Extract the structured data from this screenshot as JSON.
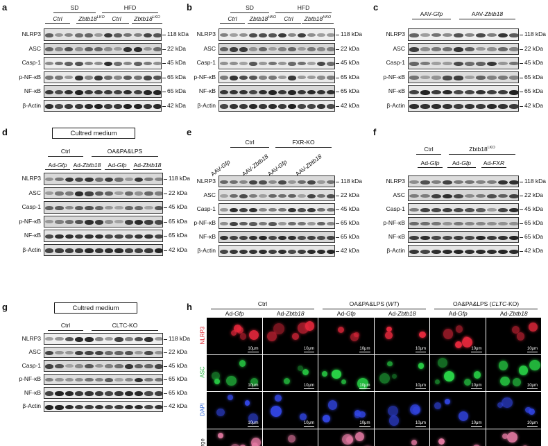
{
  "panels": {
    "a": {
      "letter": "a",
      "groups": [
        {
          "label": "SD"
        },
        {
          "label": "HFD"
        }
      ],
      "subgroups": [
        {
          "label": "Ctrl"
        },
        {
          "label": "Zbtb18",
          "sup": "LKO"
        },
        {
          "label": "Ctrl"
        },
        {
          "label": "Zbtb18",
          "sup": "LKO"
        }
      ],
      "rows": [
        {
          "label": "NLRP3",
          "kda": "118 kDa"
        },
        {
          "label": "ASC",
          "kda": "22 kDa"
        },
        {
          "label": "Casp-1",
          "kda": "45 kDa"
        },
        {
          "label": "p-NF-κB",
          "kda": "65 kDa"
        },
        {
          "label": "NF-κB",
          "kda": "65 kDa"
        },
        {
          "label": "β-Actin",
          "kda": "42 kDa"
        }
      ]
    },
    "b": {
      "letter": "b",
      "groups": [
        {
          "label": "SD"
        },
        {
          "label": "HFD"
        }
      ],
      "subgroups": [
        {
          "label": "Ctrl"
        },
        {
          "label": "Zbtb18",
          "sup": "HKO"
        },
        {
          "label": "Ctrl"
        },
        {
          "label": "Zbtb18",
          "sup": "HKO"
        }
      ],
      "rows": [
        {
          "label": "NLRP3",
          "kda": "118 kDa"
        },
        {
          "label": "ASC",
          "kda": "22 kDa"
        },
        {
          "label": "Casp-1",
          "kda": "45 kDa"
        },
        {
          "label": "p-NF-κB",
          "kda": "65 kDa"
        },
        {
          "label": "NF-κB",
          "kda": "65 kDa"
        },
        {
          "label": "β-Actin",
          "kda": "42 kDa"
        }
      ]
    },
    "c": {
      "letter": "c",
      "groups": [
        {
          "label": "AAV-",
          "it": "Gfp"
        },
        {
          "label": "AAV-",
          "it": "Zbtb18"
        }
      ],
      "rows": [
        {
          "label": "NLRP3",
          "kda": "118 kDa"
        },
        {
          "label": "ASC",
          "kda": "22 kDa"
        },
        {
          "label": "Casp-1",
          "kda": "45 kDa"
        },
        {
          "label": "p-NF-κB",
          "kda": "65 kDa"
        },
        {
          "label": "NF-κB",
          "kda": "65 kDa"
        },
        {
          "label": "β-Actin",
          "kda": "42 kDa"
        }
      ]
    },
    "d": {
      "letter": "d",
      "boxed": "Cultred medium",
      "groups": [
        {
          "label": "Ctrl"
        },
        {
          "label": "OA&PA&LPS"
        }
      ],
      "subgroups": [
        {
          "label": "Ad-",
          "it": "Gfp"
        },
        {
          "label": "Ad-",
          "it": "Zbtb18"
        },
        {
          "label": "Ad-",
          "it": "Gfp"
        },
        {
          "label": "Ad-",
          "it": "Zbtb18"
        }
      ],
      "rows": [
        {
          "label": "NLRP3",
          "kda": "118 kDa"
        },
        {
          "label": "ASC",
          "kda": "22 kDa"
        },
        {
          "label": "Casp-1",
          "kda": "45 kDa"
        },
        {
          "label": "p-NF-κB",
          "kda": "65 kDa"
        },
        {
          "label": "NF-κB",
          "kda": "65 kDa"
        },
        {
          "label": "β-Actin",
          "kda": "42 kDa"
        }
      ]
    },
    "e": {
      "letter": "e",
      "groups": [
        {
          "label": "Ctrl"
        },
        {
          "label": "FXR",
          "suffix": "-KO"
        }
      ],
      "subgroups": [
        {
          "label": "AAV-",
          "it": "Gfp"
        },
        {
          "label": "AAV-",
          "it": "Zbtb18"
        },
        {
          "label": "AAV-",
          "it": "Gfp"
        },
        {
          "label": "AAV-",
          "it": "Zbtb18"
        }
      ],
      "rows": [
        {
          "label": "NLRP3",
          "kda": "118 kDa"
        },
        {
          "label": "ASC",
          "kda": "22 kDa"
        },
        {
          "label": "Casp-1",
          "kda": "45 kDa"
        },
        {
          "label": "p-NF-κB",
          "kda": "65 kDa"
        },
        {
          "label": "NF-κB",
          "kda": "65 kDa"
        },
        {
          "label": "β-Actin",
          "kda": "42 kDa"
        }
      ]
    },
    "f": {
      "letter": "f",
      "groups": [
        {
          "label": "Ctrl"
        },
        {
          "label": "Zbtb18",
          "sup": "LKO"
        }
      ],
      "subgroups": [
        {
          "label": "Ad-",
          "it": "Gfp"
        },
        {
          "label": "Ad-",
          "it": "Gfp"
        },
        {
          "label": "Ad-",
          "it": "FXR"
        }
      ],
      "rows": [
        {
          "label": "NLRP3",
          "kda": "118 kDa"
        },
        {
          "label": "ASC",
          "kda": "22 kDa"
        },
        {
          "label": "Casp-1",
          "kda": "45 kDa"
        },
        {
          "label": "p-NF-κB",
          "kda": "65 kDa"
        },
        {
          "label": "NF-κB",
          "kda": "65 kDa"
        },
        {
          "label": "β-Actin",
          "kda": "42 kDa"
        }
      ]
    },
    "g": {
      "letter": "g",
      "boxed": "Cultred medium",
      "groups": [
        {
          "label": "Ctrl"
        },
        {
          "label": "CLTC",
          "suffix": "-KO"
        }
      ],
      "subgroups": [
        {
          "label": "Ad-",
          "it": "Gfp"
        },
        {
          "label": "Ad-",
          "it": "Zbtb18"
        },
        {
          "label": "Ad-",
          "it": "Gfp"
        },
        {
          "label": "Ad-",
          "it": "Zbtb18"
        }
      ],
      "rows": [
        {
          "label": "NLRP3",
          "kda": "118 kDa"
        },
        {
          "label": "ASC",
          "kda": "22 kDa"
        },
        {
          "label": "Casp-1",
          "kda": "45 kDa"
        },
        {
          "label": "p-NF-κB",
          "kda": "65 kDa"
        },
        {
          "label": "NF-κB",
          "kda": "65 kDa"
        },
        {
          "label": "β-Actin",
          "kda": "42 kDa"
        }
      ]
    },
    "h": {
      "letter": "h",
      "groups": [
        {
          "label": "Ctrl"
        },
        {
          "label": "OA&PA&LPS (",
          "it": "WT",
          "suffix": ")"
        },
        {
          "label": "OA&PA&LPS (",
          "it": "CLTC",
          "suffix": "-KO)"
        }
      ],
      "columns": [
        {
          "label": "Ad-",
          "it": "Gfp"
        },
        {
          "label": "Ad-",
          "it": "Zbtb18"
        },
        {
          "label": "Ad-",
          "it": "Gfp"
        },
        {
          "label": "Ad-",
          "it": "Zbtb18"
        },
        {
          "label": "Ad-",
          "it": "Gfp"
        },
        {
          "label": "Ad-",
          "it": "Zbtb18"
        }
      ],
      "rows": [
        {
          "label": "NLRP3",
          "color": "#e0202a"
        },
        {
          "label": "ASC",
          "color": "#1fb33a"
        },
        {
          "label": "DAPI",
          "color": "#2a63d8"
        },
        {
          "label": "Merge",
          "color": "#222222"
        }
      ],
      "scale_bar": "10μm"
    }
  }
}
